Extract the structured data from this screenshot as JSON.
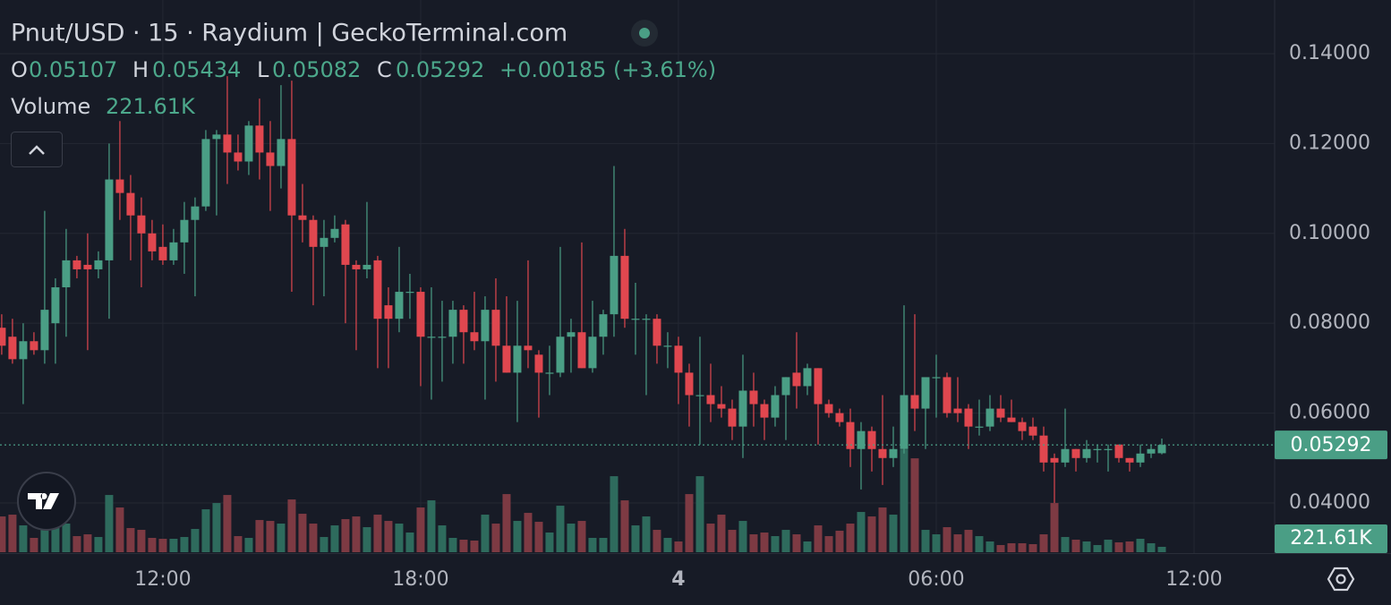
{
  "chart_data": {
    "type": "candlestick",
    "title": "Pnut/USD · 15 · Raydium | GeckoTerminal.com",
    "ohlc_keys": [
      "O",
      "H",
      "L",
      "C"
    ],
    "change_text": "+0.00185 (+3.61%)",
    "volume_title": "Volume",
    "volume_label": "221.61K",
    "up_color": "#4a9e85",
    "down_color": "#e0474f",
    "volume_up_color": "#2e6b5d",
    "volume_down_color": "#7d3a43",
    "grid": true,
    "x": [
      8.25,
      8.5,
      8.75,
      9,
      9.25,
      9.5,
      9.75,
      10,
      10.25,
      10.5,
      10.75,
      11,
      11.25,
      11.5,
      11.75,
      12,
      12.25,
      12.5,
      12.75,
      13,
      13.25,
      13.5,
      13.75,
      14,
      14.25,
      14.5,
      14.75,
      15,
      15.25,
      15.5,
      15.75,
      16,
      16.25,
      16.5,
      16.75,
      17,
      17.25,
      17.5,
      17.75,
      18,
      18.25,
      18.5,
      18.75,
      19,
      19.25,
      19.5,
      19.75,
      20,
      20.25,
      20.5,
      20.75,
      21,
      21.25,
      21.5,
      21.75,
      22,
      22.25,
      22.5,
      22.75,
      23,
      23.25,
      23.5,
      23.75,
      24,
      24.25,
      24.5,
      24.75,
      25,
      25.25,
      25.5,
      25.75,
      26,
      26.25,
      26.5,
      26.75,
      27,
      27.25,
      27.5,
      27.75,
      28,
      28.25,
      28.5,
      28.75,
      29,
      29.25,
      29.5,
      29.75,
      30,
      30.25,
      30.5,
      30.75,
      31,
      31.25,
      31.5,
      31.75,
      32,
      32.25,
      32.5,
      32.75,
      33,
      33.25,
      33.5,
      33.75,
      34,
      34.25,
      34.5,
      34.75,
      35,
      35.25
    ],
    "open": [
      0.079,
      0.077,
      0.072,
      0.076,
      0.074,
      0.08,
      0.088,
      0.094,
      0.093,
      0.092,
      0.094,
      0.112,
      0.109,
      0.104,
      0.1,
      0.097,
      0.094,
      0.098,
      0.103,
      0.106,
      0.121,
      0.122,
      0.118,
      0.116,
      0.124,
      0.118,
      0.115,
      0.121,
      0.104,
      0.103,
      0.097,
      0.099,
      0.102,
      0.093,
      0.092,
      0.094,
      0.084,
      0.081,
      0.087,
      0.087,
      0.077,
      0.077,
      0.077,
      0.083,
      0.078,
      0.076,
      0.083,
      0.075,
      0.069,
      0.075,
      0.073,
      0.069,
      0.069,
      0.077,
      0.078,
      0.07,
      0.077,
      0.082,
      0.095,
      0.081,
      0.081,
      0.081,
      0.075,
      0.075,
      0.069,
      0.064,
      0.064,
      0.062,
      0.061,
      0.057,
      0.065,
      0.062,
      0.059,
      0.064,
      0.069,
      0.066,
      0.07,
      0.062,
      0.06,
      0.058,
      0.052,
      0.056,
      0.052,
      0.05,
      0.052,
      0.064,
      0.061,
      0.068,
      0.068,
      0.061,
      0.061,
      0.057,
      0.057,
      0.061,
      0.059,
      0.058,
      0.057,
      0.055,
      0.05,
      0.049,
      0.052,
      0.05,
      0.052,
      0.052,
      0.053,
      0.05,
      0.049,
      0.051,
      0.05107
    ],
    "high": [
      0.082,
      0.081,
      0.08,
      0.078,
      0.105,
      0.09,
      0.101,
      0.095,
      0.1,
      0.096,
      0.12,
      0.125,
      0.113,
      0.108,
      0.103,
      0.102,
      0.101,
      0.107,
      0.108,
      0.123,
      0.123,
      0.135,
      0.122,
      0.125,
      0.13,
      0.125,
      0.133,
      0.134,
      0.111,
      0.104,
      0.103,
      0.104,
      0.103,
      0.094,
      0.107,
      0.095,
      0.088,
      0.097,
      0.091,
      0.088,
      0.088,
      0.085,
      0.085,
      0.084,
      0.087,
      0.086,
      0.09,
      0.086,
      0.085,
      0.094,
      0.074,
      0.075,
      0.097,
      0.081,
      0.098,
      0.085,
      0.083,
      0.115,
      0.101,
      0.089,
      0.082,
      0.082,
      0.078,
      0.077,
      0.071,
      0.077,
      0.071,
      0.066,
      0.063,
      0.073,
      0.069,
      0.063,
      0.066,
      0.068,
      0.078,
      0.071,
      0.07,
      0.063,
      0.061,
      0.061,
      0.058,
      0.057,
      0.064,
      0.057,
      0.084,
      0.082,
      0.067,
      0.073,
      0.069,
      0.068,
      0.062,
      0.063,
      0.064,
      0.064,
      0.063,
      0.059,
      0.059,
      0.057,
      0.051,
      0.061,
      0.052,
      0.054,
      0.053,
      0.053,
      0.053,
      0.05,
      0.053,
      0.053,
      0.05434
    ],
    "low": [
      0.073,
      0.071,
      0.062,
      0.073,
      0.071,
      0.071,
      0.077,
      0.09,
      0.074,
      0.09,
      0.081,
      0.103,
      0.094,
      0.088,
      0.094,
      0.093,
      0.093,
      0.091,
      0.086,
      0.105,
      0.104,
      0.111,
      0.114,
      0.113,
      0.112,
      0.105,
      0.11,
      0.087,
      0.098,
      0.084,
      0.086,
      0.098,
      0.08,
      0.074,
      0.09,
      0.07,
      0.07,
      0.078,
      0.081,
      0.066,
      0.063,
      0.067,
      0.071,
      0.071,
      0.074,
      0.063,
      0.067,
      0.069,
      0.058,
      0.07,
      0.059,
      0.064,
      0.068,
      0.069,
      0.07,
      0.069,
      0.073,
      0.077,
      0.079,
      0.073,
      0.064,
      0.071,
      0.07,
      0.062,
      0.057,
      0.053,
      0.058,
      0.059,
      0.054,
      0.05,
      0.057,
      0.054,
      0.057,
      0.054,
      0.061,
      0.064,
      0.053,
      0.059,
      0.057,
      0.048,
      0.043,
      0.047,
      0.044,
      0.048,
      0.051,
      0.056,
      0.052,
      0.059,
      0.059,
      0.058,
      0.052,
      0.055,
      0.056,
      0.058,
      0.058,
      0.054,
      0.054,
      0.047,
      0.04,
      0.048,
      0.047,
      0.049,
      0.049,
      0.047,
      0.049,
      0.047,
      0.048,
      0.05,
      0.05082
    ],
    "close": [
      0.075,
      0.072,
      0.076,
      0.074,
      0.083,
      0.088,
      0.094,
      0.092,
      0.092,
      0.094,
      0.112,
      0.109,
      0.104,
      0.1,
      0.096,
      0.094,
      0.098,
      0.103,
      0.106,
      0.121,
      0.122,
      0.118,
      0.116,
      0.124,
      0.118,
      0.115,
      0.121,
      0.104,
      0.103,
      0.097,
      0.099,
      0.101,
      0.093,
      0.092,
      0.093,
      0.081,
      0.081,
      0.087,
      0.087,
      0.077,
      0.077,
      0.077,
      0.083,
      0.078,
      0.076,
      0.083,
      0.075,
      0.069,
      0.075,
      0.074,
      0.069,
      0.069,
      0.077,
      0.078,
      0.07,
      0.077,
      0.082,
      0.095,
      0.081,
      0.081,
      0.081,
      0.075,
      0.075,
      0.069,
      0.064,
      0.064,
      0.062,
      0.061,
      0.057,
      0.065,
      0.062,
      0.059,
      0.064,
      0.068,
      0.066,
      0.07,
      0.062,
      0.06,
      0.058,
      0.052,
      0.056,
      0.052,
      0.05,
      0.052,
      0.064,
      0.061,
      0.068,
      0.068,
      0.06,
      0.06,
      0.057,
      0.057,
      0.061,
      0.059,
      0.058,
      0.056,
      0.055,
      0.049,
      0.049,
      0.052,
      0.05,
      0.052,
      0.052,
      0.052,
      0.05,
      0.049,
      0.051,
      0.052,
      0.05292
    ],
    "volume": [
      1480000,
      1554000,
      1110000,
      592000,
      1480000,
      1776000,
      1184000,
      666000,
      740000,
      629000,
      2368000,
      1850000,
      999000,
      925000,
      592000,
      555000,
      555000,
      629000,
      962000,
      1776000,
      2035000,
      2368000,
      666000,
      592000,
      1332000,
      1295000,
      1184000,
      2183000,
      1591000,
      1184000,
      629000,
      1110000,
      1369000,
      1480000,
      1036000,
      1554000,
      1295000,
      1184000,
      814000,
      1850000,
      2146000,
      1110000,
      592000,
      518000,
      481000,
      1554000,
      1184000,
      2405000,
      1295000,
      1628000,
      1258000,
      814000,
      1924000,
      1184000,
      1295000,
      592000,
      592000,
      3145000,
      2146000,
      1110000,
      1480000,
      925000,
      592000,
      444000,
      2405000,
      3145000,
      1184000,
      1554000,
      925000,
      1295000,
      740000,
      814000,
      666000,
      925000,
      740000,
      444000,
      1110000,
      666000,
      888000,
      1184000,
      1665000,
      1480000,
      1850000,
      1554000,
      4255000,
      3885000,
      925000,
      740000,
      1036000,
      740000,
      925000,
      666000,
      444000,
      296000,
      370000,
      370000,
      333000,
      740000,
      2035000,
      629000,
      518000,
      444000,
      296000,
      518000,
      407000,
      444000,
      555000,
      370000,
      221610
    ],
    "volume_ylim": [
      0,
      4000000
    ],
    "xlim": [
      8.21,
      37.875
    ],
    "xticks": [
      {
        "value": 12,
        "label": "12:00"
      },
      {
        "value": 18,
        "label": "18:00"
      },
      {
        "value": 24,
        "label": "4"
      },
      {
        "value": 30,
        "label": "06:00"
      },
      {
        "value": 36,
        "label": "12:00"
      }
    ],
    "ylim": [
      0.02884,
      0.15195
    ],
    "yticks": [
      {
        "value": 0.04,
        "label": "0.04000"
      },
      {
        "value": 0.06,
        "label": "0.06000"
      },
      {
        "value": 0.08,
        "label": "0.08000"
      },
      {
        "value": 0.1,
        "label": "0.10000"
      },
      {
        "value": 0.12,
        "label": "0.12000"
      },
      {
        "value": 0.14,
        "label": "0.14000"
      }
    ]
  }
}
